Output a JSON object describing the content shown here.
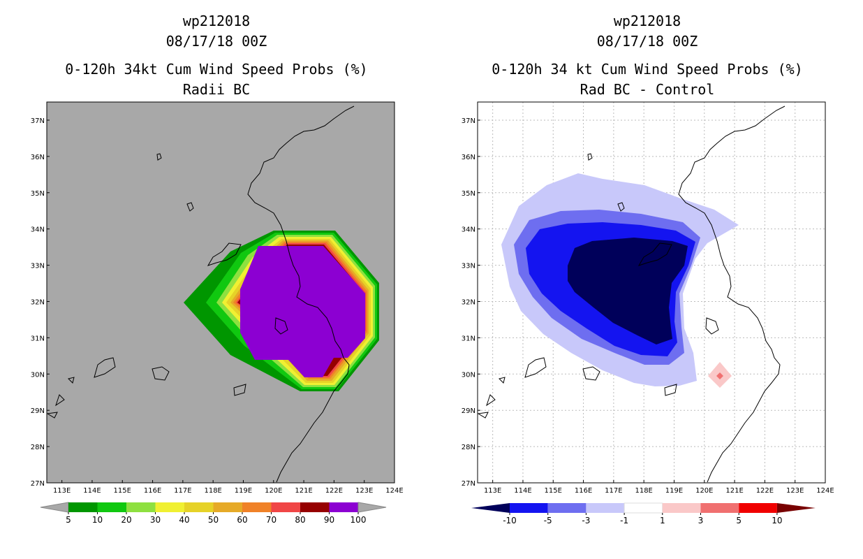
{
  "left": {
    "title_line1": "wp212018",
    "title_line2": "08/17/18 00Z",
    "title_line3": "0-120h 34kt Cum Wind Speed Probs (%)",
    "title_line4": "Radii BC",
    "background": "#a8a8a8",
    "colorbar_labels": [
      "5",
      "10",
      "20",
      "30",
      "40",
      "50",
      "60",
      "70",
      "80",
      "90",
      "100"
    ],
    "colorbar_colors": [
      "#009600",
      "#10c810",
      "#8ee040",
      "#f0f032",
      "#e6d228",
      "#e6aa28",
      "#f08228",
      "#f04646",
      "#960000",
      "#8c00d2"
    ]
  },
  "right": {
    "title_line1": "wp212018",
    "title_line2": "08/17/18 00Z",
    "title_line3": "0-120h 34 kt Cum Wind Speed Probs (%)",
    "title_line4": "Rad BC - Control",
    "background": "#ffffff",
    "colorbar_labels": [
      "-10",
      "-5",
      "-3",
      "-1",
      "1",
      "3",
      "5",
      "10"
    ],
    "colorbar_colors": [
      "#00005a",
      "#1414f0",
      "#6e6ef0",
      "#c8c8fa",
      "#ffffff",
      "#fac8c8",
      "#f07070",
      "#f00000",
      "#780000"
    ]
  },
  "chart_data": [
    {
      "type": "heatmap",
      "title": "0-120h 34kt Cum Wind Speed Probs (%) - Radii BC",
      "x_ticks": [
        "113E",
        "114E",
        "115E",
        "116E",
        "117E",
        "118E",
        "119E",
        "120E",
        "121E",
        "122E",
        "123E",
        "124E"
      ],
      "y_ticks": [
        "27N",
        "28N",
        "29N",
        "30N",
        "31N",
        "32N",
        "33N",
        "34N",
        "35N",
        "36N",
        "37N"
      ],
      "xlim": [
        112.5,
        124.0
      ],
      "ylim": [
        27.0,
        37.5
      ],
      "contour_levels": [
        5,
        10,
        20,
        30,
        40,
        50,
        60,
        70,
        80,
        90,
        100
      ],
      "max_region": {
        "lon": [
          119.0,
          122.7
        ],
        "lat": [
          29.9,
          33.6
        ],
        "value": "90-100"
      }
    },
    {
      "type": "heatmap",
      "title": "0-120h 34 kt Cum Wind Speed Probs (%) - Rad BC - Control",
      "x_ticks": [
        "113E",
        "114E",
        "115E",
        "116E",
        "117E",
        "118E",
        "119E",
        "120E",
        "121E",
        "122E",
        "123E",
        "124E"
      ],
      "y_ticks": [
        "27N",
        "28N",
        "29N",
        "30N",
        "31N",
        "32N",
        "33N",
        "34N",
        "35N",
        "36N",
        "37N"
      ],
      "xlim": [
        112.5,
        124.0
      ],
      "ylim": [
        27.0,
        37.5
      ],
      "contour_levels": [
        -10,
        -5,
        -3,
        -1,
        1,
        3,
        5,
        10
      ],
      "min_region": {
        "lon": [
          116.0,
          119.5
        ],
        "lat": [
          30.8,
          33.8
        ],
        "value": "< -10"
      },
      "positive_spot": {
        "lon": 120.5,
        "lat": 30.0,
        "value": "1-5"
      }
    }
  ]
}
